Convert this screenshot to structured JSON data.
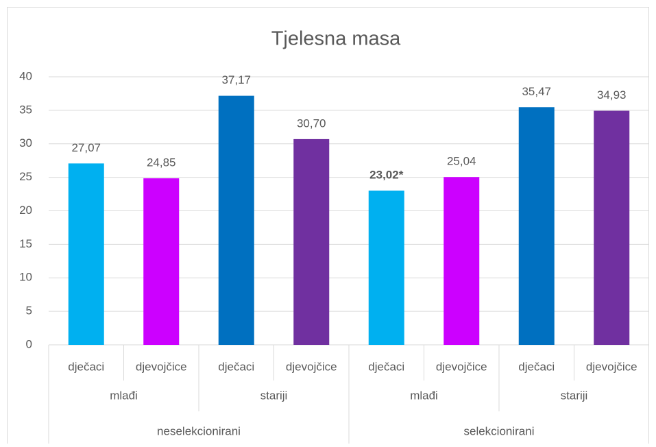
{
  "chart_data": {
    "type": "bar",
    "title": "Tjelesna masa",
    "categories": [
      "dječaci",
      "djevojčice",
      "dječaci",
      "djevojčice",
      "dječaci",
      "djevojčice",
      "dječaci",
      "djevojčice"
    ],
    "category_groups": [
      [
        "mlađi",
        "stariji",
        "mlađi",
        "stariji"
      ],
      [
        "neselekcionirani",
        "selekcionirani"
      ]
    ],
    "values": [
      27.07,
      24.85,
      37.17,
      30.7,
      23.02,
      25.04,
      35.47,
      34.93
    ],
    "value_labels": [
      "27,07",
      "24,85",
      "37,17",
      "30,70",
      "23,02*",
      "25,04",
      "35,47",
      "34,93"
    ],
    "value_label_bold": [
      false,
      false,
      false,
      false,
      true,
      false,
      false,
      false
    ],
    "colors": [
      "#00b0f0",
      "#cc00ff",
      "#0070c0",
      "#7030a0",
      "#00b0f0",
      "#cc00ff",
      "#0070c0",
      "#7030a0"
    ],
    "ylim": [
      0,
      40
    ],
    "yticks": [
      0,
      5,
      10,
      15,
      20,
      25,
      30,
      35,
      40
    ],
    "grid": true
  }
}
